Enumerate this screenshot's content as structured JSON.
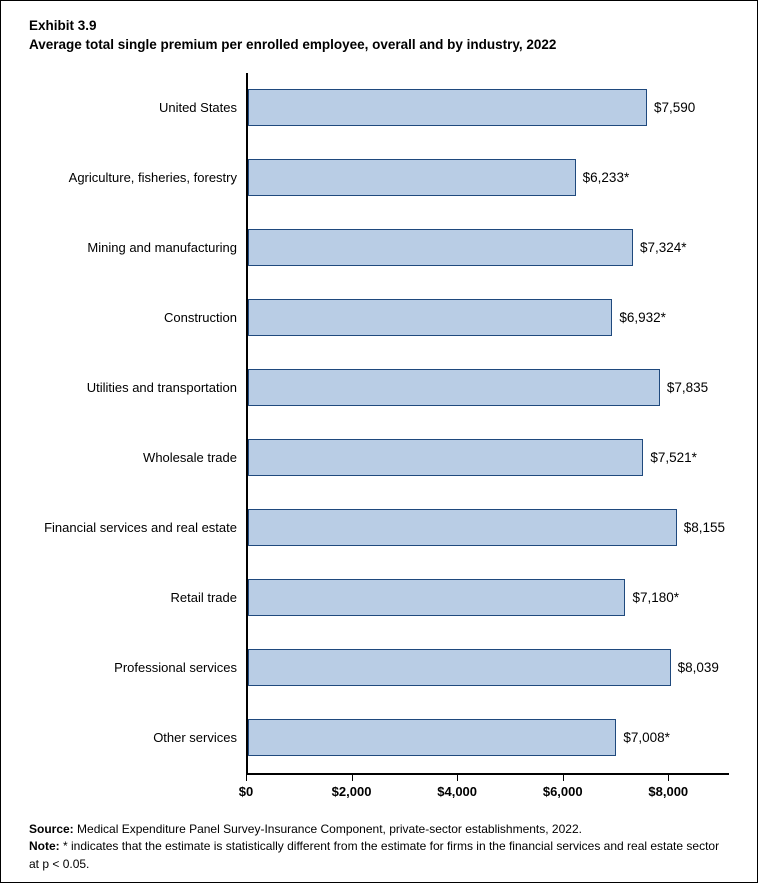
{
  "header": {
    "line1": "Exhibit 3.9",
    "line2": "Average total single premium per enrolled employee, overall and by industry, 2022"
  },
  "chart_data": {
    "type": "bar",
    "orientation": "horizontal",
    "title": "Average total single premium per enrolled employee, overall and by industry, 2022",
    "categories": [
      "United States",
      "Agriculture, fisheries, forestry",
      "Mining and manufacturing",
      "Construction",
      "Utilities and transportation",
      "Wholesale trade",
      "Financial services and real estate",
      "Retail trade",
      "Professional services",
      "Other services"
    ],
    "values": [
      7590,
      6233,
      7324,
      6932,
      7835,
      7521,
      8155,
      7180,
      8039,
      7008
    ],
    "value_labels": [
      "$7,590",
      "$6,233*",
      "$7,324*",
      "$6,932*",
      "$7,835",
      "$7,521*",
      "$8,155",
      "$7,180*",
      "$8,039",
      "$7,008*"
    ],
    "xlabel": "",
    "ylabel": "",
    "xlim": [
      0,
      9150
    ],
    "xticks": [
      0,
      2000,
      4000,
      6000,
      8000
    ],
    "xtick_labels": [
      "$0",
      "$2,000",
      "$4,000",
      "$6,000",
      "$8,000"
    ],
    "grid": false,
    "legend": false,
    "bar_fill": "#b9cde5",
    "bar_border": "#1f497d",
    "axis_color": "#000000"
  },
  "footer": {
    "source_label": "Source:",
    "source_text": " Medical Expenditure Panel Survey-Insurance Component, private-sector establishments, 2022.",
    "note_label": "Note:",
    "note_text": " * indicates that the estimate is statistically different from the estimate for firms in the financial services and real estate sector at p < 0.05."
  }
}
